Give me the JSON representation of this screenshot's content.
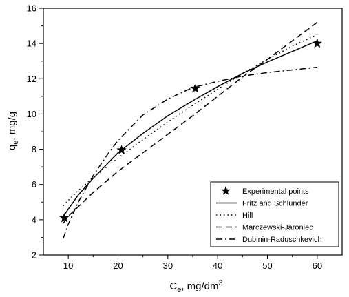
{
  "chart_data": {
    "type": "scatter",
    "title": "",
    "xlabel": {
      "main": "C",
      "sub": "e",
      "rest": ", mg/dm",
      "sup": "3"
    },
    "ylabel": {
      "main": "q",
      "sub": "e",
      "rest": ", mg/g"
    },
    "xlim": [
      5,
      65
    ],
    "ylim": [
      2,
      16
    ],
    "xticks": [
      10,
      20,
      30,
      40,
      50,
      60
    ],
    "yticks": [
      2,
      4,
      6,
      8,
      10,
      12,
      14,
      16
    ],
    "grid": false,
    "legend_position": "bottom-right",
    "series": [
      {
        "name": "Experimental points",
        "kind": "markers",
        "marker": "star",
        "x": [
          9.2,
          20.7,
          35.5,
          60.0
        ],
        "y": [
          4.1,
          7.95,
          11.45,
          14.0
        ]
      },
      {
        "name": "Fritz and Schlunder",
        "kind": "line",
        "dash": "solid",
        "x": [
          9,
          10,
          12,
          15,
          20,
          25,
          30,
          35,
          40,
          45,
          50,
          55,
          60
        ],
        "y": [
          4.2,
          4.6,
          5.4,
          6.35,
          7.8,
          8.9,
          9.9,
          10.75,
          11.55,
          12.3,
          12.95,
          13.55,
          14.15
        ]
      },
      {
        "name": "Hill",
        "kind": "line",
        "dash": "dot",
        "x": [
          9,
          10,
          12,
          15,
          20,
          25,
          30,
          35,
          40,
          45,
          50,
          55,
          60
        ],
        "y": [
          4.8,
          5.1,
          5.65,
          6.4,
          7.5,
          8.55,
          9.55,
          10.5,
          11.4,
          12.3,
          13.1,
          13.85,
          14.5
        ]
      },
      {
        "name": "Marczewski-Jaroniec",
        "kind": "line",
        "dash": "dash",
        "x": [
          9,
          10,
          15,
          20,
          25,
          30,
          35,
          40,
          45,
          50,
          55,
          60
        ],
        "y": [
          3.8,
          4.2,
          5.55,
          6.75,
          7.8,
          8.85,
          9.9,
          11.0,
          12.1,
          13.1,
          14.15,
          15.2
        ]
      },
      {
        "name": "Dubinin-Raduschkevich",
        "kind": "line",
        "dash": "dashdot",
        "x": [
          9,
          10,
          12,
          15,
          18,
          20,
          25,
          30,
          35,
          40,
          45,
          50,
          55,
          60
        ],
        "y": [
          2.95,
          3.75,
          5.0,
          6.5,
          7.75,
          8.5,
          9.95,
          10.85,
          11.5,
          11.85,
          12.15,
          12.35,
          12.5,
          12.65
        ]
      }
    ]
  }
}
